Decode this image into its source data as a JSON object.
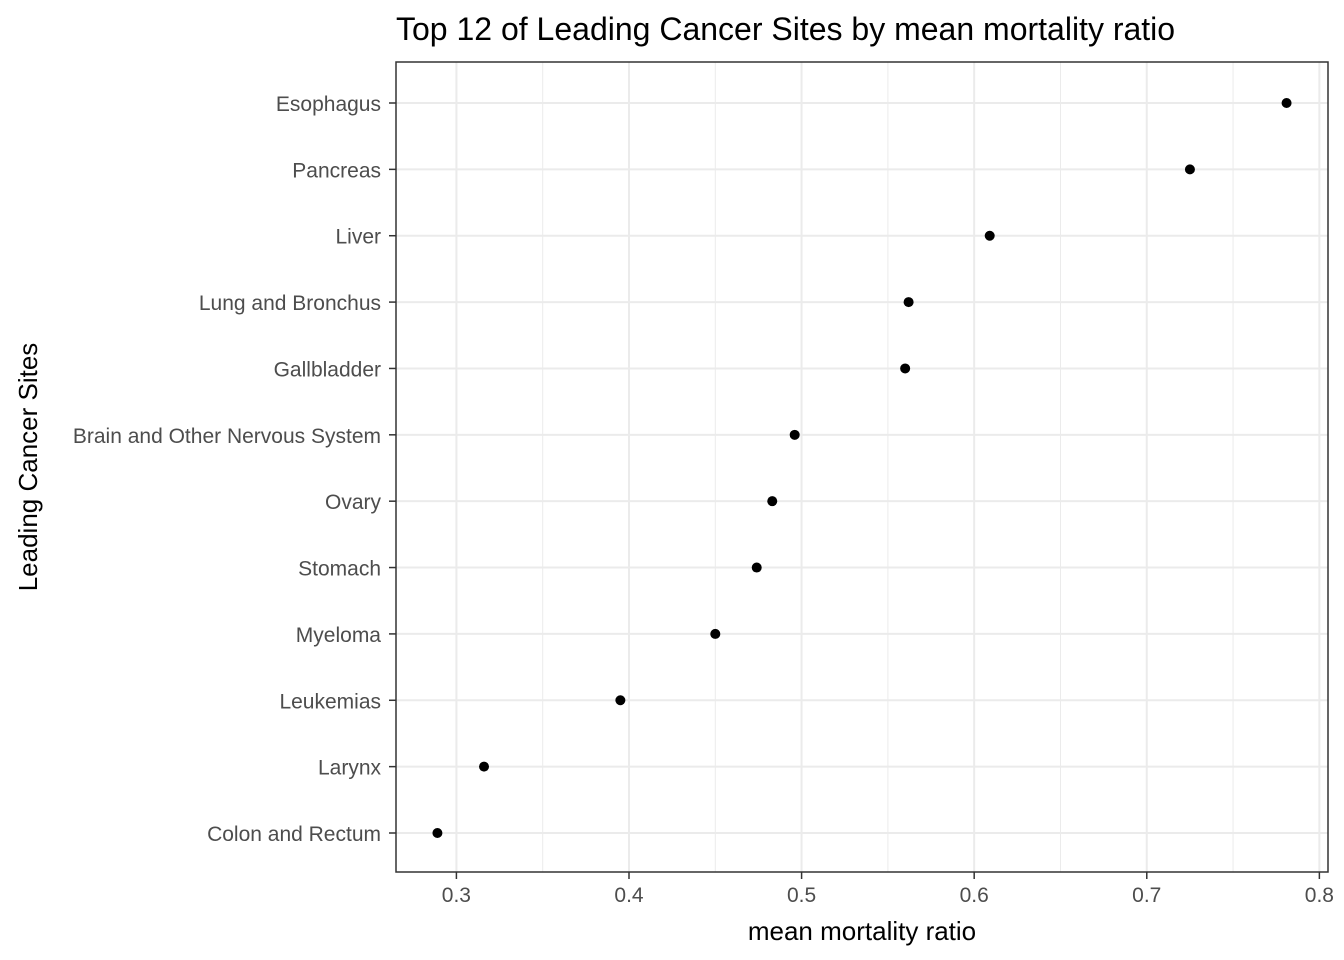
{
  "chart_data": {
    "type": "scatter",
    "title": "Top 12 of Leading Cancer Sites by mean mortality ratio",
    "xlabel": "mean mortality ratio",
    "ylabel": "Leading Cancer Sites",
    "xlim": [
      0.265,
      0.805
    ],
    "x_ticks": [
      0.3,
      0.4,
      0.5,
      0.6,
      0.7,
      0.8
    ],
    "x_tick_labels": [
      "0.3",
      "0.4",
      "0.5",
      "0.6",
      "0.7",
      "0.8"
    ],
    "grid": true,
    "categories": [
      "Esophagus",
      "Pancreas",
      "Liver",
      "Lung and Bronchus",
      "Gallbladder",
      "Brain and Other Nervous System",
      "Ovary",
      "Stomach",
      "Myeloma",
      "Leukemias",
      "Larynx",
      "Colon and Rectum"
    ],
    "values": [
      0.781,
      0.725,
      0.609,
      0.562,
      0.56,
      0.496,
      0.483,
      0.474,
      0.45,
      0.395,
      0.316,
      0.289
    ]
  }
}
